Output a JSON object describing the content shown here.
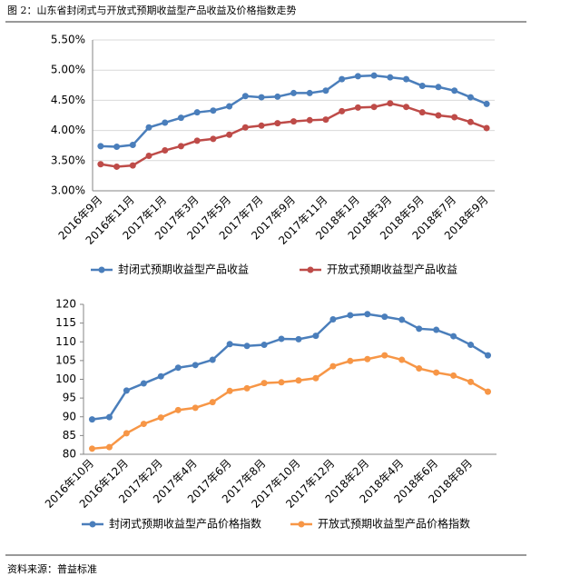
{
  "title": "图 2：山东省封闭式与开放式预期收益型产品收益及价格指数走势",
  "source": "资料来源：普益标准",
  "chart_data": [
    {
      "type": "line",
      "categories": [
        "2016年9月",
        null,
        "2016年11月",
        null,
        "2017年1月",
        null,
        "2017年3月",
        null,
        "2017年5月",
        null,
        "2017年7月",
        null,
        "2017年9月",
        null,
        "2017年11月",
        null,
        "2018年1月",
        null,
        "2018年3月",
        null,
        "2018年5月",
        null,
        "2018年7月",
        null,
        "2018年9月"
      ],
      "series": [
        {
          "name": "封闭式预期收益型产品收益",
          "color": "#4a7ebb",
          "values": [
            3.74,
            3.73,
            3.76,
            4.05,
            4.13,
            4.21,
            4.3,
            4.33,
            4.4,
            4.57,
            4.55,
            4.56,
            4.62,
            4.62,
            4.66,
            4.85,
            4.9,
            4.91,
            4.88,
            4.85,
            4.74,
            4.72,
            4.66,
            4.55,
            4.44
          ]
        },
        {
          "name": "开放式预期收益型产品收益",
          "color": "#be4b48",
          "values": [
            3.44,
            3.4,
            3.42,
            3.58,
            3.67,
            3.74,
            3.83,
            3.86,
            3.93,
            4.05,
            4.08,
            4.12,
            4.15,
            4.17,
            4.18,
            4.32,
            4.38,
            4.39,
            4.45,
            4.39,
            4.3,
            4.25,
            4.22,
            4.14,
            4.04
          ]
        }
      ],
      "ylim": [
        3.0,
        5.5
      ],
      "yticks": [
        {
          "value": 3.0,
          "label": "3.00%"
        },
        {
          "value": 3.5,
          "label": "3.50%"
        },
        {
          "value": 4.0,
          "label": "4.00%"
        },
        {
          "value": 4.5,
          "label": "4.50%"
        },
        {
          "value": 5.0,
          "label": "5.00%"
        },
        {
          "value": 5.5,
          "label": "5.50%"
        }
      ],
      "grid": true,
      "legend": "bottom"
    },
    {
      "type": "line",
      "categories": [
        "2016年10月",
        null,
        "2016年12月",
        null,
        "2017年2月",
        null,
        "2017年4月",
        null,
        "2017年6月",
        null,
        "2017年8月",
        null,
        "2017年10月",
        null,
        "2017年12月",
        null,
        "2018年2月",
        null,
        "2018年4月",
        null,
        "2018年6月",
        null,
        "2018年8月",
        null
      ],
      "series": [
        {
          "name": "封闭式预期收益型产品价格指数",
          "color": "#4a7ebb",
          "values": [
            89.3,
            89.9,
            97.0,
            98.9,
            100.8,
            103.1,
            103.8,
            105.2,
            109.4,
            108.9,
            109.2,
            110.8,
            110.7,
            111.6,
            116.0,
            117.1,
            117.4,
            116.7,
            115.9,
            113.5,
            113.2,
            111.5,
            109.2,
            106.4
          ]
        },
        {
          "name": "开放式预期收益型产品价格指数",
          "color": "#f79646",
          "values": [
            81.5,
            81.9,
            85.6,
            88.1,
            89.8,
            91.8,
            92.4,
            93.9,
            96.9,
            97.6,
            99.0,
            99.2,
            99.7,
            100.3,
            103.5,
            104.9,
            105.4,
            106.4,
            105.2,
            102.9,
            101.8,
            101.0,
            99.3,
            96.7
          ]
        }
      ],
      "ylim": [
        80,
        120
      ],
      "yticks": [
        80,
        85,
        90,
        95,
        100,
        105,
        110,
        115,
        120
      ],
      "grid": false,
      "legend": "bottom"
    }
  ]
}
